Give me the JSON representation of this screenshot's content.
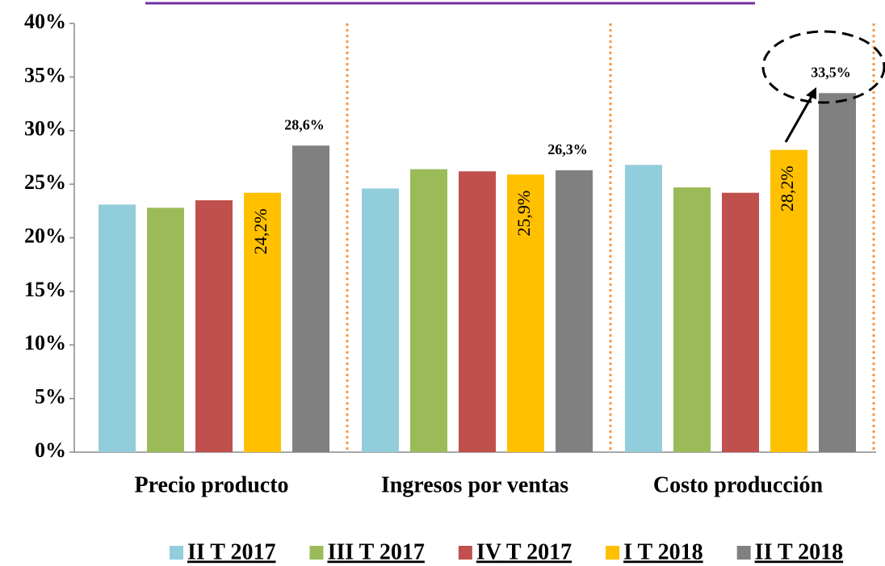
{
  "chart_data": {
    "type": "bar",
    "categories": [
      "Precio producto",
      "Ingresos por ventas",
      "Costo producción"
    ],
    "series": [
      {
        "name": "II T 2017",
        "color": "#92cddc",
        "values": [
          23.1,
          24.6,
          26.8
        ]
      },
      {
        "name": "III T 2017",
        "color": "#9bbb59",
        "values": [
          22.8,
          26.4,
          24.7
        ]
      },
      {
        "name": "IV T 2017",
        "color": "#c0504d",
        "values": [
          23.5,
          26.2,
          24.2
        ]
      },
      {
        "name": "I T 2018",
        "color": "#ffc000",
        "values": [
          24.2,
          25.9,
          28.2
        ],
        "value_labels": [
          "24,2%",
          "25,9%",
          "28,2%"
        ]
      },
      {
        "name": "II T 2018",
        "color": "#808080",
        "values": [
          28.6,
          26.3,
          33.5
        ],
        "value_labels": [
          "28,6%",
          "26,3%",
          "33,5%"
        ]
      }
    ],
    "ylim": [
      0,
      40
    ],
    "yticks": [
      {
        "value": 0,
        "label": "0%"
      },
      {
        "value": 5,
        "label": "5%"
      },
      {
        "value": 10,
        "label": "10%"
      },
      {
        "value": 15,
        "label": "15%"
      },
      {
        "value": 20,
        "label": "20%"
      },
      {
        "value": 25,
        "label": "25%"
      },
      {
        "value": 30,
        "label": "30%"
      },
      {
        "value": 35,
        "label": "35%"
      },
      {
        "value": 40,
        "label": "40%"
      }
    ],
    "legend": "bottom"
  }
}
